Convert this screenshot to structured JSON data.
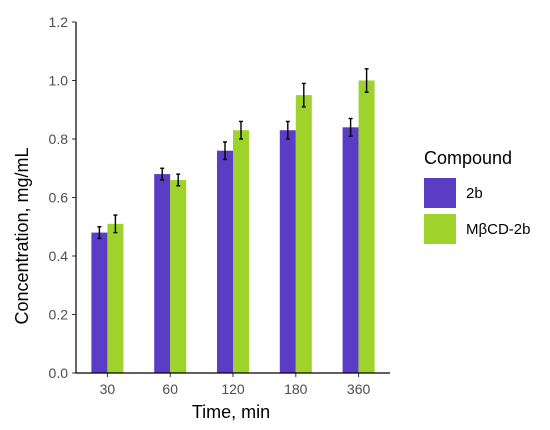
{
  "chart_data": {
    "type": "bar",
    "categories": [
      "30",
      "60",
      "120",
      "180",
      "360"
    ],
    "series": [
      {
        "name": "2b",
        "color": "#5b3cc4",
        "values": [
          0.48,
          0.68,
          0.76,
          0.83,
          0.84
        ],
        "errors": [
          0.02,
          0.02,
          0.03,
          0.03,
          0.03
        ]
      },
      {
        "name": "MβCD-2b",
        "color": "#9fd22a",
        "values": [
          0.51,
          0.66,
          0.83,
          0.95,
          1.0
        ],
        "errors": [
          0.03,
          0.02,
          0.03,
          0.04,
          0.04
        ]
      }
    ],
    "xlabel": "Time, min",
    "ylabel": "Concentration, mg/mL",
    "ylim": [
      0,
      1.2
    ],
    "yticks": [
      "0.0",
      "0.2",
      "0.4",
      "0.6",
      "0.8",
      "1.0",
      "1.2"
    ],
    "legend": {
      "title": "Compound",
      "placement": "right"
    },
    "grid": false
  }
}
